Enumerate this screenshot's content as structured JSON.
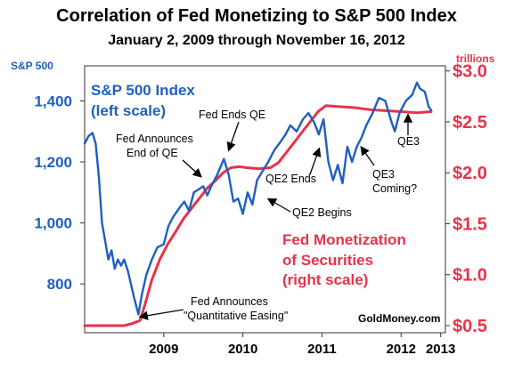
{
  "chart_data": {
    "type": "line",
    "title": "Correlation of Fed Monetizing to S&P 500 Index",
    "subtitle": "January 2, 2009 through November 16, 2012",
    "left_axis": {
      "unit": "S&P 500",
      "ticks": [
        "800",
        "1,000",
        "1,200",
        "1,400"
      ],
      "tick_values": [
        800,
        1000,
        1200,
        1400
      ],
      "ylim": [
        640,
        1515
      ]
    },
    "right_axis": {
      "unit": "trillions",
      "ticks": [
        "$0.5",
        "$1.0",
        "$1.5",
        "$2.0",
        "$2.5",
        "$3.0"
      ],
      "tick_values": [
        0.5,
        1.0,
        1.5,
        2.0,
        2.5,
        3.0
      ],
      "ylim": [
        0.43,
        3.05
      ]
    },
    "x_axis": {
      "ticks": [
        "2009",
        "2010",
        "2011",
        "2012",
        "2013"
      ],
      "tick_values": [
        2009.5,
        2010.5,
        2011.5,
        2012.5,
        2013.0
      ],
      "xlim": [
        2008.5,
        2013.06
      ]
    },
    "grid": false,
    "series": [
      {
        "name": "S&P 500 Index",
        "axis": "left",
        "color": "#1f5fbf",
        "points": [
          [
            2008.5,
            1260
          ],
          [
            2008.55,
            1285
          ],
          [
            2008.6,
            1295
          ],
          [
            2008.64,
            1260
          ],
          [
            2008.68,
            1150
          ],
          [
            2008.72,
            1000
          ],
          [
            2008.76,
            940
          ],
          [
            2008.8,
            880
          ],
          [
            2008.84,
            910
          ],
          [
            2008.88,
            850
          ],
          [
            2008.92,
            880
          ],
          [
            2008.96,
            860
          ],
          [
            2009.0,
            880
          ],
          [
            2009.05,
            840
          ],
          [
            2009.12,
            760
          ],
          [
            2009.18,
            700
          ],
          [
            2009.22,
            760
          ],
          [
            2009.28,
            830
          ],
          [
            2009.35,
            880
          ],
          [
            2009.42,
            920
          ],
          [
            2009.5,
            930
          ],
          [
            2009.56,
            990
          ],
          [
            2009.62,
            1020
          ],
          [
            2009.7,
            1050
          ],
          [
            2009.76,
            1070
          ],
          [
            2009.82,
            1040
          ],
          [
            2009.88,
            1100
          ],
          [
            2009.94,
            1110
          ],
          [
            2010.0,
            1120
          ],
          [
            2010.05,
            1090
          ],
          [
            2010.1,
            1120
          ],
          [
            2010.18,
            1160
          ],
          [
            2010.26,
            1210
          ],
          [
            2010.32,
            1160
          ],
          [
            2010.38,
            1070
          ],
          [
            2010.44,
            1080
          ],
          [
            2010.5,
            1030
          ],
          [
            2010.56,
            1100
          ],
          [
            2010.62,
            1060
          ],
          [
            2010.68,
            1140
          ],
          [
            2010.75,
            1170
          ],
          [
            2010.82,
            1200
          ],
          [
            2010.9,
            1240
          ],
          [
            2010.96,
            1260
          ],
          [
            2011.04,
            1290
          ],
          [
            2011.1,
            1320
          ],
          [
            2011.18,
            1300
          ],
          [
            2011.26,
            1340
          ],
          [
            2011.33,
            1360
          ],
          [
            2011.4,
            1330
          ],
          [
            2011.46,
            1290
          ],
          [
            2011.52,
            1340
          ],
          [
            2011.58,
            1200
          ],
          [
            2011.64,
            1140
          ],
          [
            2011.7,
            1190
          ],
          [
            2011.76,
            1130
          ],
          [
            2011.82,
            1250
          ],
          [
            2011.88,
            1200
          ],
          [
            2011.94,
            1250
          ],
          [
            2012.0,
            1280
          ],
          [
            2012.06,
            1320
          ],
          [
            2012.14,
            1360
          ],
          [
            2012.22,
            1410
          ],
          [
            2012.3,
            1400
          ],
          [
            2012.38,
            1330
          ],
          [
            2012.42,
            1300
          ],
          [
            2012.48,
            1360
          ],
          [
            2012.56,
            1400
          ],
          [
            2012.64,
            1420
          ],
          [
            2012.7,
            1460
          ],
          [
            2012.74,
            1440
          ],
          [
            2012.8,
            1430
          ],
          [
            2012.85,
            1380
          ],
          [
            2012.88,
            1370
          ]
        ]
      },
      {
        "name": "Fed Monetization of Securities",
        "axis": "right",
        "color": "#e8334a",
        "points": [
          [
            2008.5,
            0.5
          ],
          [
            2008.8,
            0.5
          ],
          [
            2009.0,
            0.5
          ],
          [
            2009.1,
            0.52
          ],
          [
            2009.2,
            0.55
          ],
          [
            2009.26,
            0.7
          ],
          [
            2009.35,
            0.95
          ],
          [
            2009.45,
            1.15
          ],
          [
            2009.55,
            1.3
          ],
          [
            2009.65,
            1.42
          ],
          [
            2009.75,
            1.55
          ],
          [
            2009.85,
            1.65
          ],
          [
            2009.95,
            1.75
          ],
          [
            2010.05,
            1.85
          ],
          [
            2010.15,
            1.92
          ],
          [
            2010.25,
            2.0
          ],
          [
            2010.35,
            2.05
          ],
          [
            2010.45,
            2.06
          ],
          [
            2010.55,
            2.05
          ],
          [
            2010.7,
            2.04
          ],
          [
            2010.85,
            2.05
          ],
          [
            2010.95,
            2.1
          ],
          [
            2011.05,
            2.2
          ],
          [
            2011.15,
            2.3
          ],
          [
            2011.25,
            2.4
          ],
          [
            2011.35,
            2.5
          ],
          [
            2011.45,
            2.6
          ],
          [
            2011.55,
            2.66
          ],
          [
            2011.7,
            2.65
          ],
          [
            2011.9,
            2.64
          ],
          [
            2012.1,
            2.62
          ],
          [
            2012.3,
            2.61
          ],
          [
            2012.5,
            2.6
          ],
          [
            2012.7,
            2.59
          ],
          [
            2012.88,
            2.6
          ]
        ]
      }
    ],
    "legend_labels": {
      "sp_line1": "S&P 500 Index",
      "sp_line2": "(left scale)",
      "fed_line1": "Fed Monetization",
      "fed_line2": "of Securities",
      "fed_line3": "(right scale)"
    },
    "annotations": {
      "fed_ends_qe": "Fed Ends QE",
      "fed_announces_end_1": "Fed Announces",
      "fed_announces_end_2": "End of QE",
      "qe2_ends": "QE2 Ends",
      "qe2_begins": "QE2 Begins",
      "qe3": "QE3",
      "qe3_coming_1": "QE3",
      "qe3_coming_2": "Coming?",
      "fed_announces_qe_1": "Fed Announces",
      "fed_announces_qe_2": "\"Quantitative Easing\""
    },
    "credit": "GoldMoney.com"
  }
}
